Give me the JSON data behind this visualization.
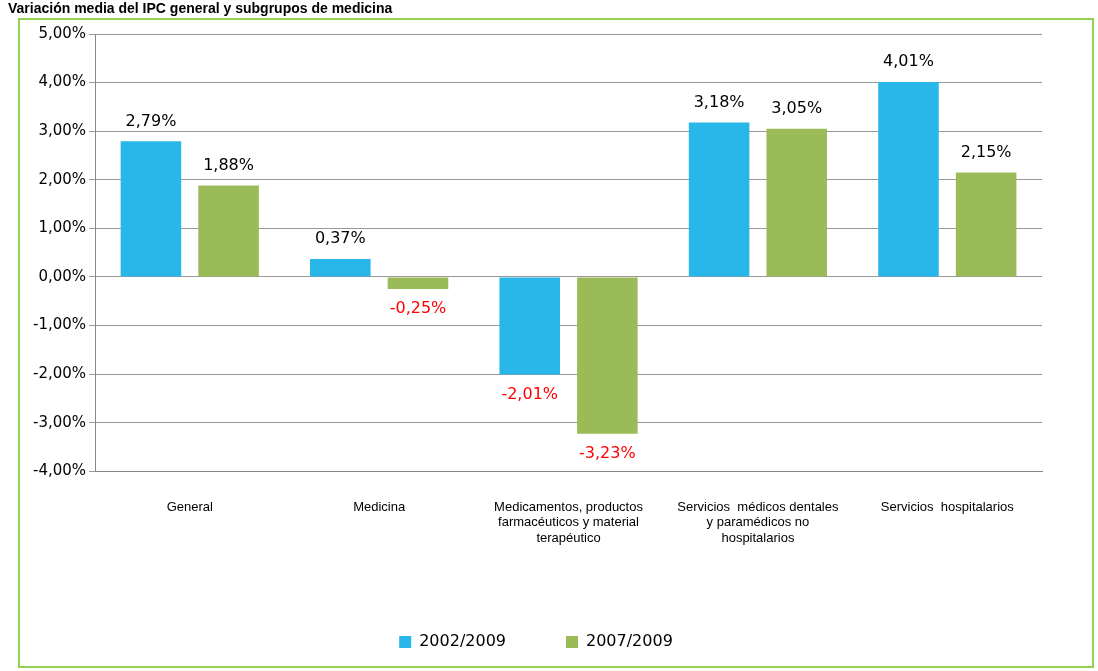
{
  "chart_data": {
    "type": "bar",
    "title": "Variación media del IPC general y subgrupos de medicina",
    "categories": [
      "General",
      "Medicina",
      "Medicamentos, productos farmacéuticos y material terapéutico",
      "Servicios  médicos dentales y paramédicos no hospitalarios",
      "Servicios  hospitalarios"
    ],
    "series": [
      {
        "name": "2002/2009",
        "color": "#29b6e8",
        "values": [
          2.79,
          0.37,
          -2.01,
          3.18,
          4.01
        ],
        "value_labels": [
          "2,79%",
          "0,37%",
          "-2,01%",
          "3,18%",
          "4,01%"
        ]
      },
      {
        "name": "2007/2009",
        "color": "#9bbb59",
        "values": [
          1.88,
          -0.25,
          -3.23,
          3.05,
          2.15
        ],
        "value_labels": [
          "1,88%",
          "-0,25%",
          "-3,23%",
          "3,05%",
          "2,15%"
        ]
      }
    ],
    "ylim": [
      -4,
      5
    ],
    "yticks": [
      {
        "value": -4,
        "label": "-4,00%"
      },
      {
        "value": -3,
        "label": "-3,00%"
      },
      {
        "value": -2,
        "label": "-2,00%"
      },
      {
        "value": -1,
        "label": "-1,00%"
      },
      {
        "value": 0,
        "label": "0,00%"
      },
      {
        "value": 1,
        "label": "1,00%"
      },
      {
        "value": 2,
        "label": "2,00%"
      },
      {
        "value": 3,
        "label": "3,00%"
      },
      {
        "value": 4,
        "label": "4,00%"
      },
      {
        "value": 5,
        "label": "5,00%"
      }
    ],
    "grid": "y",
    "legend": "bottom"
  }
}
